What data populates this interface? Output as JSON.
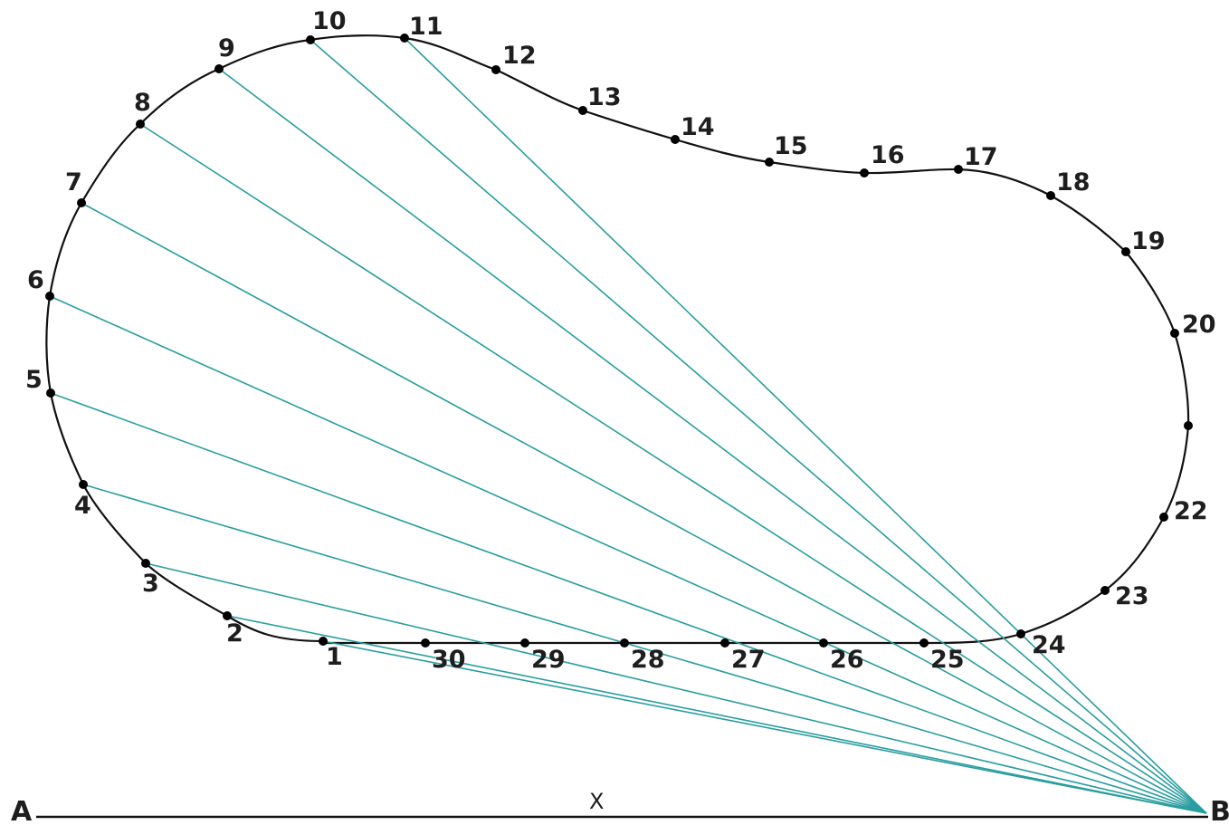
{
  "baseline": {
    "start_label": "A",
    "end_label": "B",
    "middle_label": "X"
  },
  "colors": {
    "outline": "#111111",
    "ray": "#2a9d9f",
    "point": "#000000",
    "text": "#1e1e1e"
  },
  "points": [
    {
      "label": "1",
      "connected": true
    },
    {
      "label": "2",
      "connected": true
    },
    {
      "label": "3",
      "connected": true
    },
    {
      "label": "4",
      "connected": true
    },
    {
      "label": "5",
      "connected": true
    },
    {
      "label": "6",
      "connected": true
    },
    {
      "label": "7",
      "connected": true
    },
    {
      "label": "8",
      "connected": true
    },
    {
      "label": "9",
      "connected": true
    },
    {
      "label": "10",
      "connected": true
    },
    {
      "label": "11",
      "connected": true
    },
    {
      "label": "12",
      "connected": false
    },
    {
      "label": "13",
      "connected": false
    },
    {
      "label": "14",
      "connected": false
    },
    {
      "label": "15",
      "connected": false
    },
    {
      "label": "16",
      "connected": false
    },
    {
      "label": "17",
      "connected": false
    },
    {
      "label": "18",
      "connected": false
    },
    {
      "label": "19",
      "connected": false
    },
    {
      "label": "20",
      "connected": false
    },
    {
      "label": "",
      "connected": false
    },
    {
      "label": "22",
      "connected": false
    },
    {
      "label": "23",
      "connected": false
    },
    {
      "label": "24",
      "connected": false
    },
    {
      "label": "25",
      "connected": false
    },
    {
      "label": "26",
      "connected": false
    },
    {
      "label": "27",
      "connected": false
    },
    {
      "label": "28",
      "connected": false
    },
    {
      "label": "29",
      "connected": false
    },
    {
      "label": "30",
      "connected": false
    }
  ]
}
